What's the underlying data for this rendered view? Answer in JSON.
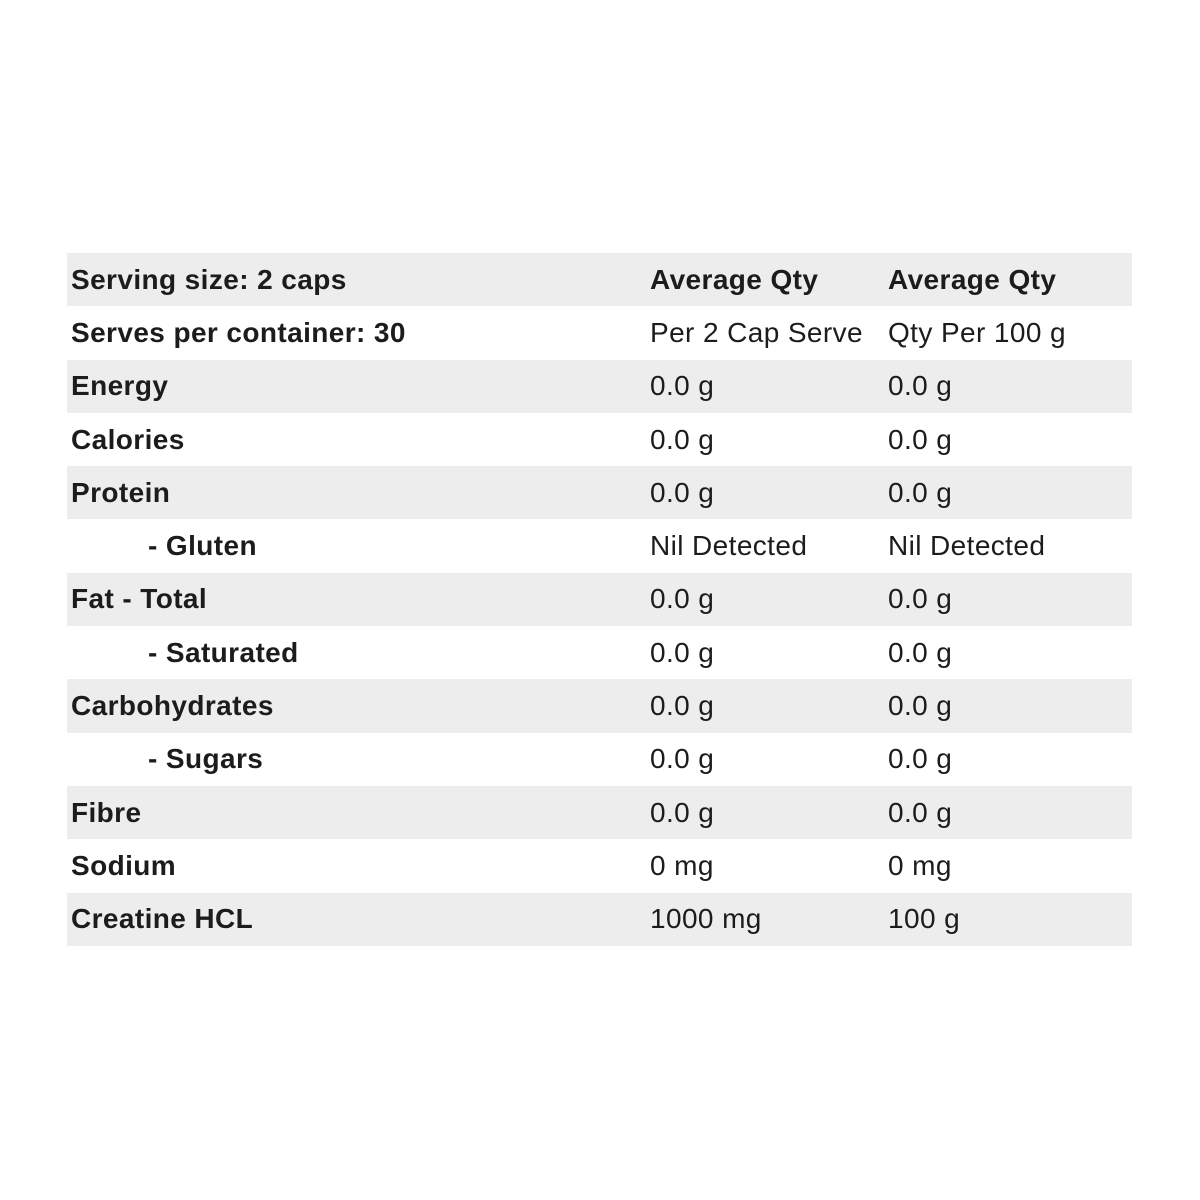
{
  "panel": {
    "title_semantic": "Nutrition Information Panel",
    "colors": {
      "stripe": "#ededed",
      "text": "#1c1c1c",
      "background": "#ffffff"
    },
    "header": {
      "serving_size": "Serving size: 2 caps",
      "avg_qty_serve": "Average Qty",
      "avg_qty_100g": "Average Qty"
    },
    "subheader": {
      "serves_per_container": "Serves per container: 30",
      "per_serve_unit": "Per 2 Cap Serve",
      "per_100g_unit": "Qty Per 100 g"
    },
    "rows": [
      {
        "label": "Energy",
        "per_serve": "0.0 g",
        "per_100g": "0.0 g"
      },
      {
        "label": "Calories",
        "per_serve": "0.0 g",
        "per_100g": "0.0 g"
      },
      {
        "label": "Protein",
        "per_serve": "0.0 g",
        "per_100g": "0.0 g"
      },
      {
        "label": "- Gluten",
        "per_serve": "Nil Detected",
        "per_100g": "Nil Detected"
      },
      {
        "label": "Fat - Total",
        "per_serve": "0.0 g",
        "per_100g": "0.0 g"
      },
      {
        "label": "- Saturated",
        "per_serve": "0.0 g",
        "per_100g": "0.0 g"
      },
      {
        "label": "Carbohydrates",
        "per_serve": "0.0 g",
        "per_100g": "0.0 g"
      },
      {
        "label": "- Sugars",
        "per_serve": "0.0 g",
        "per_100g": "0.0 g"
      },
      {
        "label": "Fibre",
        "per_serve": "0.0 g",
        "per_100g": "0.0 g"
      },
      {
        "label": "Sodium",
        "per_serve": "0 mg",
        "per_100g": "0 mg"
      },
      {
        "label": "Creatine HCL",
        "per_serve": "1000 mg",
        "per_100g": "100 g"
      }
    ]
  }
}
